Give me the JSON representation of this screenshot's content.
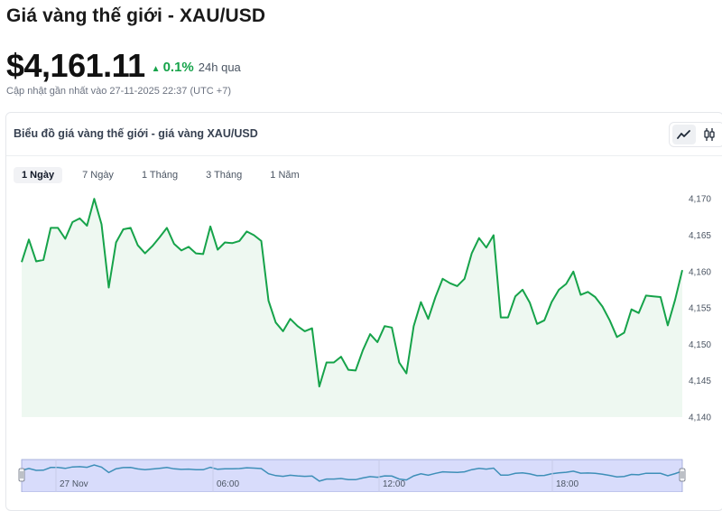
{
  "header": {
    "title": "Giá vàng thế giới - XAU/USD",
    "price": "$4,161.11",
    "change_pct": "0.1%",
    "change_period": "24h qua",
    "updated": "Cập nhật gần nhất vào 27-11-2025 22:37 (UTC +7)"
  },
  "card": {
    "title": "Biểu đồ giá vàng thế giới - giá vàng XAU/USD",
    "view_modes": [
      "line-chart-icon",
      "candlestick-icon"
    ],
    "active_view": "line-chart-icon"
  },
  "range_tabs": [
    {
      "label": "1 Ngày",
      "active": true
    },
    {
      "label": "7 Ngày",
      "active": false
    },
    {
      "label": "1 Tháng",
      "active": false
    },
    {
      "label": "3 Tháng",
      "active": false
    },
    {
      "label": "1 Năm",
      "active": false
    }
  ],
  "colors": {
    "line": "#16a34a",
    "area": "#eef8f1",
    "navigator_fill": "#d8dcfb",
    "navigator_line": "#3e8fb8",
    "up": "#16a34a"
  },
  "chart_data": {
    "type": "area",
    "title": "",
    "xlabel": "",
    "ylabel": "",
    "ylim": [
      4140,
      4172.5
    ],
    "y_ticks": [
      4140,
      4145,
      4150,
      4155,
      4160,
      4165,
      4170
    ],
    "y_tick_labels": [
      "4,140",
      "4,145",
      "4,150",
      "4,155",
      "4,160",
      "4,165",
      "4,170"
    ],
    "grid": false,
    "series": [
      {
        "values": [
          4161.3,
          4164.4,
          4161.4,
          4161.6,
          4166.0,
          4166.0,
          4164.5,
          4166.8,
          4167.3,
          4166.3,
          4170.0,
          4166.5,
          4157.8,
          4164.0,
          4165.8,
          4166.0,
          4163.6,
          4162.5,
          4163.5,
          4164.7,
          4166.0,
          4163.8,
          4162.9,
          4163.4,
          4162.5,
          4162.4,
          4166.2,
          4163.0,
          4164.0,
          4163.9,
          4164.2,
          4165.5,
          4165.0,
          4164.2,
          4156.0,
          4153.0,
          4151.8,
          4153.5,
          4152.5,
          4151.8,
          4152.2,
          4144.2,
          4147.5,
          4147.5,
          4148.3,
          4146.5,
          4146.4,
          4149.2,
          4151.4,
          4150.3,
          4152.5,
          4152.3,
          4147.5,
          4146.0,
          4152.5,
          4155.8,
          4153.5,
          4156.5,
          4159.0,
          4158.4,
          4158.0,
          4159.0,
          4162.5,
          4164.6,
          4163.3,
          4165.0,
          4153.7,
          4153.7,
          4156.6,
          4157.5,
          4155.7,
          4152.8,
          4153.3,
          4155.8,
          4157.5,
          4158.3,
          4160.0,
          4156.8,
          4157.2,
          4156.5,
          4155.2,
          4153.3,
          4151.0,
          4151.6,
          4154.8,
          4154.3,
          4156.7,
          4156.6,
          4156.5,
          4152.6,
          4156.1,
          4160.2
        ]
      }
    ],
    "navigator": {
      "x_labels": [
        "27 Nov",
        "06:00",
        "12:00",
        "18:00"
      ]
    }
  }
}
